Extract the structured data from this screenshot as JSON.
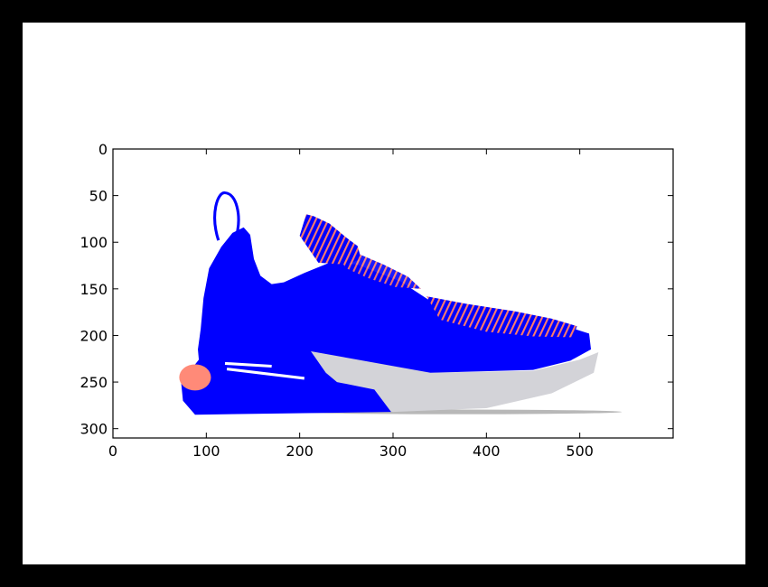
{
  "figure": {
    "background": "#ffffff",
    "frame_color": "#000000"
  },
  "chart_data": {
    "type": "image",
    "title": "",
    "xlabel": "",
    "ylabel": "",
    "xlim": [
      0,
      600
    ],
    "ylim": [
      310,
      0
    ],
    "x_ticks": [
      0,
      100,
      200,
      300,
      400,
      500
    ],
    "y_ticks": [
      0,
      50,
      100,
      150,
      200,
      250,
      300
    ],
    "grid": false,
    "image_content": "sneaker",
    "colors": {
      "primary": "#0000ff",
      "accent": "#ff7c6b",
      "sole": "#d3d3d8",
      "shadow": "#9a9a9a"
    }
  }
}
